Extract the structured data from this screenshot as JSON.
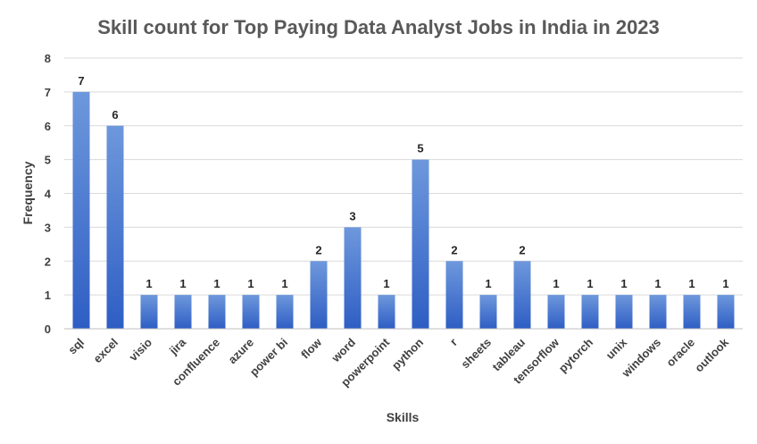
{
  "chart_data": {
    "type": "bar",
    "title": "Skill count for Top Paying Data Analyst Jobs in India in 2023",
    "xlabel": "Skills",
    "ylabel": "Frequency",
    "ylim": [
      0,
      8
    ],
    "yticks": [
      0,
      1,
      2,
      3,
      4,
      5,
      6,
      7,
      8
    ],
    "grid": true,
    "legend": "none",
    "data_labels": true,
    "categories": [
      "sql",
      "excel",
      "visio",
      "jira",
      "confluence",
      "azure",
      "power bi",
      "flow",
      "word",
      "powerpoint",
      "python",
      "r",
      "sheets",
      "tableau",
      "tensorflow",
      "pytorch",
      "unix",
      "windows",
      "oracle",
      "outlook"
    ],
    "values": [
      7,
      6,
      1,
      1,
      1,
      1,
      1,
      2,
      3,
      1,
      5,
      2,
      1,
      2,
      1,
      1,
      1,
      1,
      1,
      1
    ],
    "colors": {
      "bar_top": "#6E98DC",
      "bar_bottom": "#2E5EC4",
      "grid": "#D9D9D9",
      "axis": "#BFBFBF"
    }
  }
}
